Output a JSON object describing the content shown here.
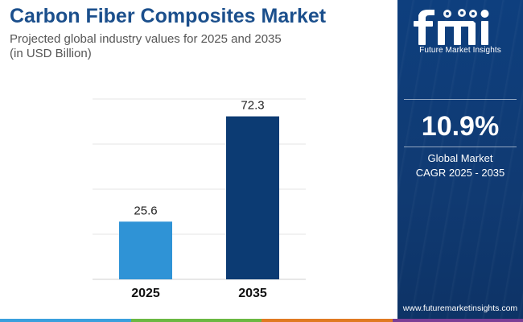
{
  "header": {
    "title": "Carbon Fiber Composites Market",
    "subtitle_line1": "Projected global industry values for 2025 and 2035",
    "subtitle_line2": "(in USD Billion)"
  },
  "chart_data": {
    "type": "bar",
    "categories": [
      "2025",
      "2035"
    ],
    "values": [
      25.6,
      72.3
    ],
    "data_labels": [
      "25.6",
      "72.3"
    ],
    "title": "Carbon Fiber Composites Market",
    "xlabel": "",
    "ylabel": "",
    "ylim": [
      0,
      80
    ],
    "grid": true,
    "legend": "none",
    "colors": [
      "#2f93d6",
      "#0c3b73"
    ]
  },
  "side_panel": {
    "logo_text": "fmi",
    "logo_caption": "Future Market Insights",
    "cagr_value": "10.9%",
    "cagr_label_line1": "Global Market",
    "cagr_label_line2": "CAGR 2025 - 2035",
    "website": "www.futuremarketinsights.com",
    "background_color": "#0e3f7e"
  },
  "bottom_strip_colors": [
    "#3aa0dd",
    "#6bb843",
    "#e07a22",
    "#7a3f96"
  ]
}
